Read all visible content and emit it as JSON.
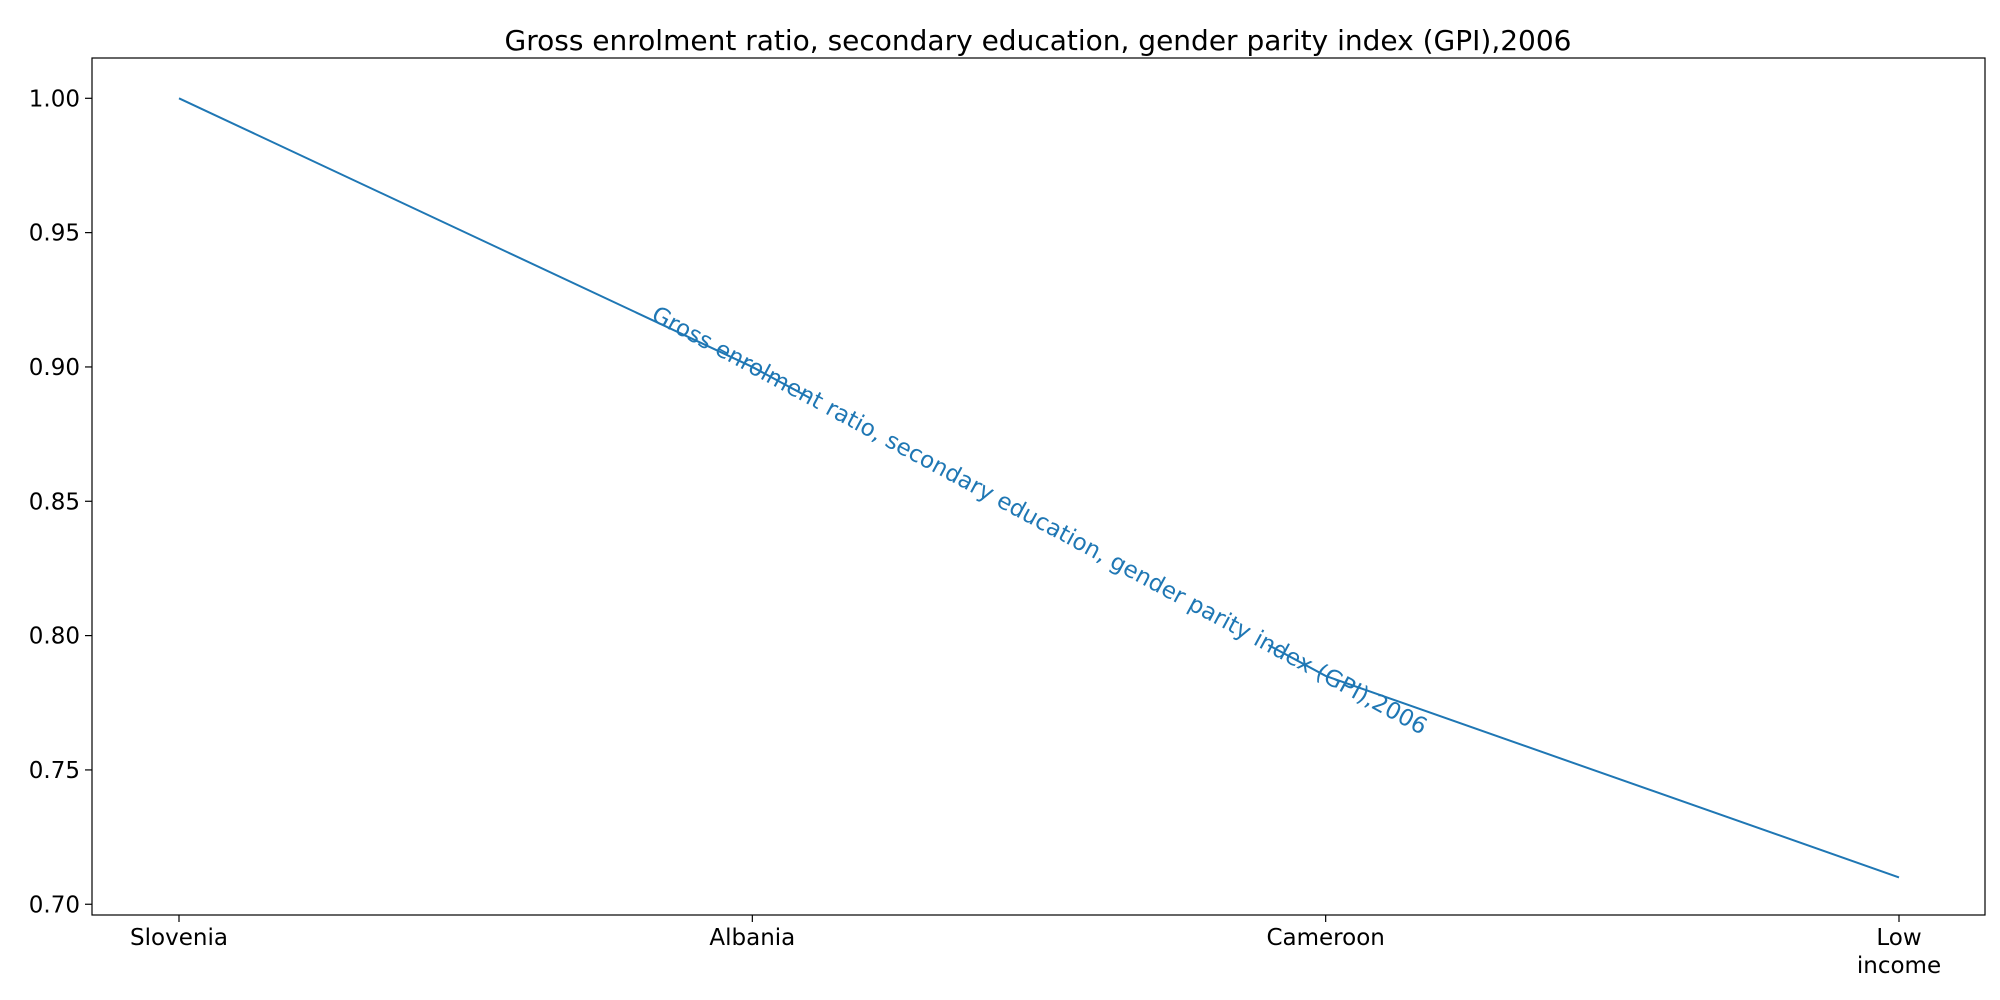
{
  "chart_data": {
    "type": "line",
    "title": "Gross enrolment ratio, secondary education, gender parity index (GPI),2006",
    "xlabel": "",
    "ylabel": "",
    "categories": [
      "Slovenia",
      "Albania",
      "Cameroon",
      "Low income"
    ],
    "series": [
      {
        "name": "Gross enrolment ratio, secondary education, gender parity index (GPI),2006",
        "values": [
          1.0,
          0.9,
          0.785,
          0.71
        ],
        "color": "#1f77b4"
      }
    ],
    "ylim": [
      0.696,
      1.015
    ],
    "yticks": [
      0.7,
      0.75,
      0.8,
      0.85,
      0.9,
      0.95,
      1.0
    ],
    "ytick_labels": [
      "0.70",
      "0.75",
      "0.80",
      "0.85",
      "0.90",
      "0.95",
      "1.00"
    ],
    "grid": false,
    "legend": "none",
    "inline_series_label": true
  }
}
